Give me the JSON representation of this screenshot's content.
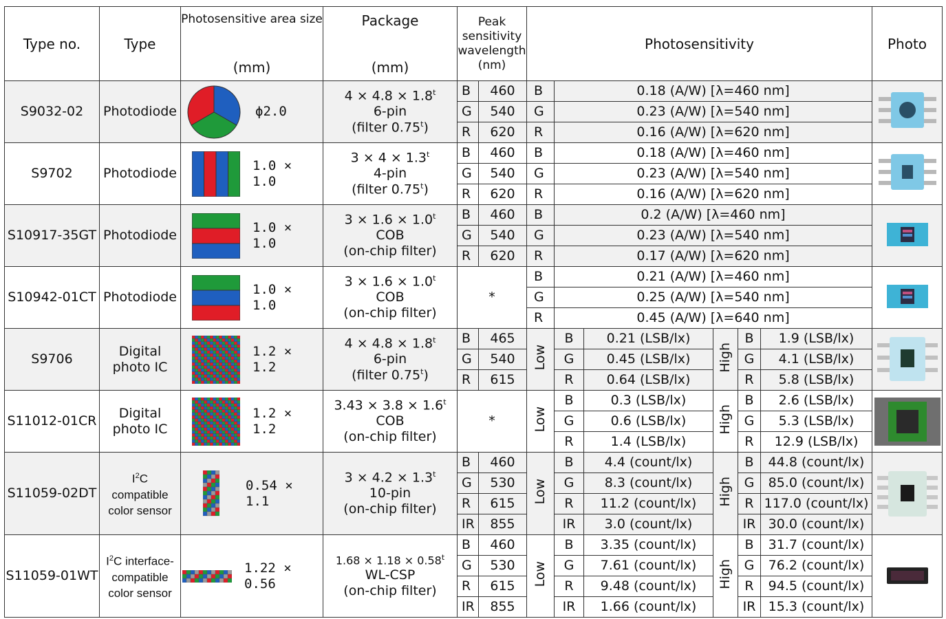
{
  "headers": {
    "type_no": "Type no.",
    "type": "Type",
    "area": "Photosensitive area size",
    "area_unit": "(mm)",
    "package": "Package",
    "package_unit": "(mm)",
    "peak": "Peak sensitivity wavelength",
    "peak_unit": "(nm)",
    "photosensitivity": "Photosensitivity",
    "photo": "Photo"
  },
  "labels": {
    "low": "Low",
    "high": "High",
    "star": "*"
  },
  "rows": [
    {
      "type_no": "S9032-02",
      "type": "Photodiode",
      "area": "ϕ2.0",
      "pkg1": "4 × 4.8 × 1.8",
      "pkg2": "6-pin",
      "pkg3": "(filter 0.75",
      "pkg3_end": ")",
      "pkg_sup": "t",
      "channels": [
        {
          "c": "B",
          "wl": "460",
          "s": "0.18 (A/W) [λ=460 nm]"
        },
        {
          "c": "G",
          "wl": "540",
          "s": "0.23 (A/W) [λ=540 nm]"
        },
        {
          "c": "R",
          "wl": "620",
          "s": "0.16 (A/W) [λ=620 nm]"
        }
      ]
    },
    {
      "type_no": "S9702",
      "type": "Photodiode",
      "area": "1.0 × 1.0",
      "pkg1": "3 × 4 × 1.3",
      "pkg2": "4-pin",
      "pkg3": "(filter 0.75",
      "pkg3_end": ")",
      "pkg_sup": "t",
      "channels": [
        {
          "c": "B",
          "wl": "460",
          "s": "0.18 (A/W) [λ=460 nm]"
        },
        {
          "c": "G",
          "wl": "540",
          "s": "0.23 (A/W) [λ=540 nm]"
        },
        {
          "c": "R",
          "wl": "620",
          "s": "0.16 (A/W) [λ=620 nm]"
        }
      ]
    },
    {
      "type_no": "S10917-35GT",
      "type": "Photodiode",
      "area": "1.0 × 1.0",
      "pkg1": "3 × 1.6 × 1.0",
      "pkg2": "COB",
      "pkg3": "(on-chip filter)",
      "pkg_sup": "t",
      "channels": [
        {
          "c": "B",
          "wl": "460",
          "s": "0.2 (A/W) [λ=460 nm]"
        },
        {
          "c": "G",
          "wl": "540",
          "s": "0.23 (A/W) [λ=540 nm]"
        },
        {
          "c": "R",
          "wl": "620",
          "s": "0.17 (A/W) [λ=620 nm]"
        }
      ]
    },
    {
      "type_no": "S10942-01CT",
      "type": "Photodiode",
      "area": "1.0 × 1.0",
      "pkg1": "3 × 1.6 × 1.0",
      "pkg2": "COB",
      "pkg3": "(on-chip filter)",
      "pkg_sup": "t",
      "channels": [
        {
          "c": "B",
          "s": "0.21 (A/W) [λ=460 nm]"
        },
        {
          "c": "G",
          "s": "0.25 (A/W) [λ=540 nm]"
        },
        {
          "c": "R",
          "s": "0.45 (A/W) [λ=640 nm]"
        }
      ]
    },
    {
      "type_no": "S9706",
      "type": "Digital photo IC",
      "area": "1.2 × 1.2",
      "pkg1": "4 × 4.8 × 1.8",
      "pkg2": "6-pin",
      "pkg3": "(filter 0.75",
      "pkg3_end": ")",
      "pkg_sup": "t",
      "channels": [
        {
          "c": "B",
          "wl": "465",
          "lo": "0.21 (LSB/lx)",
          "hi": "1.9 (LSB/lx)"
        },
        {
          "c": "G",
          "wl": "540",
          "lo": "0.45 (LSB/lx)",
          "hi": "4.1 (LSB/lx)"
        },
        {
          "c": "R",
          "wl": "615",
          "lo": "0.64 (LSB/lx)",
          "hi": "5.8 (LSB/lx)"
        }
      ]
    },
    {
      "type_no": "S11012-01CR",
      "type": "Digital photo IC",
      "area": "1.2 × 1.2",
      "pkg1": "3.43 × 3.8 × 1.6",
      "pkg2": "COB",
      "pkg3": "(on-chip filter)",
      "pkg_sup": "t",
      "channels": [
        {
          "c": "B",
          "lo": "0.3 (LSB/lx)",
          "hi": "2.6 (LSB/lx)"
        },
        {
          "c": "G",
          "lo": "0.6 (LSB/lx)",
          "hi": "5.3 (LSB/lx)"
        },
        {
          "c": "R",
          "lo": "1.4 (LSB/lx)",
          "hi": "12.9 (LSB/lx)"
        }
      ]
    },
    {
      "type_no": "S11059-02DT",
      "type_a": "I",
      "type_sup": "2",
      "type_b": "C compatible color sensor",
      "area": "0.54 × 1.1",
      "pkg1": "3 × 4.2 × 1.3",
      "pkg2": "10-pin",
      "pkg3": "(on-chip filter)",
      "pkg_sup": "t",
      "channels": [
        {
          "c": "B",
          "wl": "460",
          "lo": "4.4 (count/lx)",
          "hi": "44.8 (count/lx)"
        },
        {
          "c": "G",
          "wl": "530",
          "lo": "8.3 (count/lx)",
          "hi": "85.0 (count/lx)"
        },
        {
          "c": "R",
          "wl": "615",
          "lo": "11.2 (count/lx)",
          "hi": "117.0 (count/lx)"
        },
        {
          "c": "IR",
          "wl": "855",
          "lo": "3.0 (count/lx)",
          "hi": "30.0 (count/lx)"
        }
      ]
    },
    {
      "type_no": "S11059-01WT",
      "type_a": "I",
      "type_sup": "2",
      "type_b": "C interface-compatible color sensor",
      "area": "1.22 × 0.56",
      "pkg1": "1.68 × 1.18 × 0.58",
      "pkg2": "WL-CSP",
      "pkg3": "(on-chip filter)",
      "pkg_sup": "t",
      "channels": [
        {
          "c": "B",
          "wl": "460",
          "lo": "3.35 (count/lx)",
          "hi": "31.7 (count/lx)"
        },
        {
          "c": "G",
          "wl": "530",
          "lo": "7.61 (count/lx)",
          "hi": "76.2 (count/lx)"
        },
        {
          "c": "R",
          "wl": "615",
          "lo": "9.48 (count/lx)",
          "hi": "94.5 (count/lx)"
        },
        {
          "c": "IR",
          "wl": "855",
          "lo": "1.66 (count/lx)",
          "hi": "15.3 (count/lx)"
        }
      ]
    }
  ],
  "colors": {
    "blue": "#1f5fbf",
    "green": "#1f9a3a",
    "red": "#e01d27",
    "gray": "#9a9a9a"
  }
}
